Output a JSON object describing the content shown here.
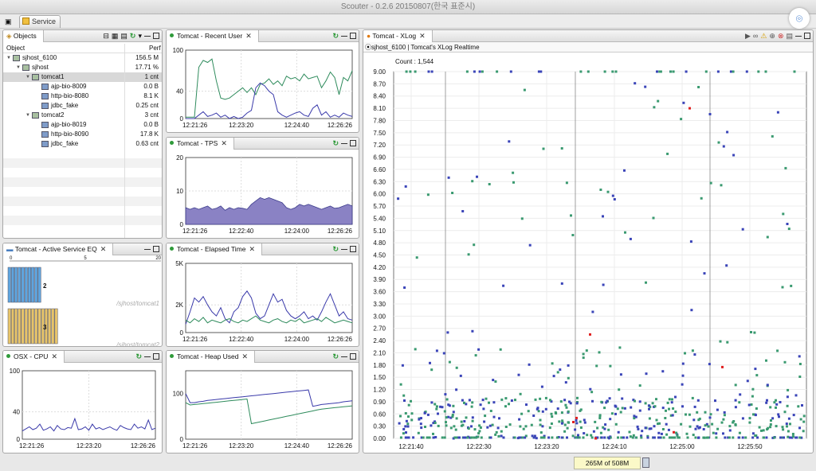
{
  "window_title": "Scouter - 0.2.6 20150807(한국 표준시)",
  "toolbar": {
    "service_tab": "Service"
  },
  "colors": {
    "green": "#2e8b5c",
    "blue": "#3a3aaa",
    "purple_fill": "#8a82c4",
    "accent_green": "#2f9a3a",
    "xlog_green": "#3a9a70",
    "xlog_blue": "#3a44b8",
    "xlog_red": "#e02020",
    "bar_blue": "#5fa5df",
    "bar_gold": "#e7c46a"
  },
  "icons": {
    "refresh": "refresh-icon",
    "minimize": "minimize-icon",
    "maximize": "maximize-icon",
    "close": "close-icon"
  },
  "objects": {
    "tab": "Objects",
    "col_object": "Object",
    "col_perf": "Perf",
    "rows": [
      {
        "name": "sjhost_6100",
        "perf": "156.5 M",
        "level": 0,
        "icon": "server-icon"
      },
      {
        "name": "sjhost",
        "perf": "17.71 %",
        "level": 1,
        "icon": "host-icon"
      },
      {
        "name": "tomcat1",
        "perf": "1 cnt",
        "level": 2,
        "icon": "tomcat-icon"
      },
      {
        "name": "ajp-bio-8009",
        "perf": "0.0 B",
        "level": 3,
        "icon": "connector-icon"
      },
      {
        "name": "http-bio-8080",
        "perf": "8.1 K",
        "level": 3,
        "icon": "connector-icon"
      },
      {
        "name": "jdbc_fake",
        "perf": "0.25 cnt",
        "level": 3,
        "icon": "jdbc-icon"
      },
      {
        "name": "tomcat2",
        "perf": "3 cnt",
        "level": 2,
        "icon": "tomcat-icon"
      },
      {
        "name": "ajp-bio-8019",
        "perf": "0.0 B",
        "level": 3,
        "icon": "connector-icon"
      },
      {
        "name": "http-bio-8090",
        "perf": "17.8 K",
        "level": 3,
        "icon": "connector-icon"
      },
      {
        "name": "jdbc_fake",
        "perf": "0.63 cnt",
        "level": 3,
        "icon": "jdbc-icon"
      }
    ]
  },
  "active_eq": {
    "tab": "Tomcat - Active Service EQ",
    "scale": [
      "0",
      "5",
      "20"
    ],
    "rows": [
      {
        "value": "2",
        "label": "/sjhost/tomcat1",
        "color": "#5fa5df"
      },
      {
        "value": "3",
        "label": "/sjhost/tomcat2",
        "color": "#e7c46a"
      }
    ]
  },
  "chart_data": [
    {
      "id": "recent_user",
      "tab": "Tomcat - Recent User",
      "type": "line",
      "ylim": [
        0,
        100
      ],
      "yticks": [
        "100",
        "40",
        "0"
      ],
      "xticks": [
        "12:21:26",
        "12:23:20",
        "12:24:40",
        "12:26:26"
      ],
      "series": [
        {
          "color": "#2e8b5c",
          "values": [
            2,
            2,
            2,
            75,
            85,
            82,
            87,
            55,
            30,
            28,
            30,
            35,
            40,
            45,
            38,
            45,
            35,
            50,
            52,
            58,
            50,
            55,
            48,
            62,
            58,
            60,
            55,
            65,
            58,
            60,
            62,
            45,
            55,
            68,
            60,
            35,
            60,
            55,
            70
          ]
        },
        {
          "color": "#3a3aaa",
          "values": [
            0,
            0,
            0,
            5,
            10,
            3,
            5,
            8,
            2,
            5,
            0,
            3,
            0,
            2,
            8,
            12,
            45,
            52,
            48,
            40,
            35,
            10,
            5,
            2,
            5,
            8,
            10,
            5,
            3,
            15,
            20,
            5,
            10,
            2,
            5,
            2,
            8,
            5,
            3
          ]
        }
      ]
    },
    {
      "id": "tps",
      "tab": "Tomcat - TPS",
      "type": "area",
      "ylim": [
        0,
        20
      ],
      "yticks": [
        "20",
        "10",
        "0"
      ],
      "xticks": [
        "12:21:26",
        "12:22:40",
        "12:24:00",
        "12:26:26"
      ],
      "series": [
        {
          "color": "#8a82c4",
          "values": [
            5,
            4.5,
            5,
            4.5,
            5,
            5.5,
            4.5,
            4.8,
            5.5,
            4.2,
            5,
            4.5,
            5,
            4.8,
            4.5,
            6,
            7,
            8,
            7.5,
            8,
            7.5,
            7,
            6.5,
            5,
            4.5,
            5,
            6,
            5.5,
            6,
            5.5,
            5,
            4.5,
            5,
            5.5,
            4.8,
            5,
            5.5,
            6,
            5.5
          ]
        }
      ]
    },
    {
      "id": "elapsed",
      "tab": "Tomcat - Elapsed Time",
      "type": "line",
      "ylim": [
        0,
        5000
      ],
      "yticks": [
        "5K",
        "2K",
        "0"
      ],
      "xticks": [
        "12:21:26",
        "12:22:40",
        "12:24:00",
        "12:26:26"
      ],
      "series": [
        {
          "color": "#3a3aaa",
          "values": [
            600,
            1500,
            2500,
            2200,
            2600,
            2000,
            1500,
            1200,
            1800,
            1000,
            700,
            1500,
            1800,
            2600,
            3000,
            2500,
            1400,
            1000,
            1200,
            2000,
            2800,
            2200,
            2400,
            1600,
            1200,
            1000,
            1200,
            1500,
            1000,
            1200,
            900,
            1500,
            2200,
            2800,
            2000,
            1200,
            1500,
            1000,
            900
          ]
        },
        {
          "color": "#2e8b5c",
          "values": [
            900,
            700,
            1000,
            800,
            1100,
            700,
            900,
            800,
            700,
            900,
            1000,
            800,
            700,
            900,
            800,
            1000,
            1200,
            900,
            800,
            700,
            900,
            1000,
            800,
            700,
            900,
            800,
            1000,
            700,
            800,
            900,
            1000,
            800,
            1100,
            900,
            700,
            800,
            900,
            800,
            700
          ]
        }
      ]
    },
    {
      "id": "cpu",
      "tab": "OSX - CPU",
      "type": "line",
      "ylim": [
        0,
        100
      ],
      "yticks": [
        "100",
        "40",
        "0"
      ],
      "xticks": [
        "12:21:26",
        "12:23:20",
        "12:26:26"
      ],
      "series": [
        {
          "color": "#3a3aaa",
          "values": [
            12,
            15,
            18,
            14,
            16,
            22,
            13,
            15,
            18,
            12,
            20,
            15,
            14,
            17,
            16,
            30,
            14,
            15,
            18,
            13,
            22,
            15,
            17,
            14,
            16,
            18,
            15,
            13,
            20,
            17,
            15,
            14,
            22,
            16,
            18,
            15,
            28,
            14,
            16
          ]
        }
      ]
    },
    {
      "id": "heap",
      "tab": "Tomcat - Heap Used",
      "type": "line",
      "ylim": [
        0,
        150
      ],
      "yticks": [
        "100",
        "0"
      ],
      "xticks": [
        "12:21:26",
        "12:23:20",
        "12:24:40",
        "12:26:26"
      ],
      "series": [
        {
          "color": "#3a3aaa",
          "values": [
            100,
            80,
            80,
            82,
            83,
            85,
            86,
            87,
            88,
            89,
            90,
            91,
            92,
            93,
            94,
            95,
            96,
            97,
            98,
            99,
            100,
            101,
            102,
            103,
            104,
            105,
            106,
            107,
            108,
            72,
            74,
            76,
            77,
            78,
            79,
            80,
            82,
            83,
            84
          ]
        },
        {
          "color": "#2e8b5c",
          "values": [
            80,
            75,
            76,
            77,
            78,
            79,
            80,
            81,
            82,
            83,
            84,
            85,
            86,
            87,
            88,
            34,
            36,
            38,
            40,
            42,
            44,
            46,
            48,
            50,
            52,
            54,
            56,
            58,
            60,
            62,
            64,
            66,
            67,
            68,
            69,
            70,
            71,
            72,
            73
          ]
        }
      ]
    }
  ],
  "xlog": {
    "tab": "Tomcat - XLog",
    "subtitle": "sjhost_6100 | Tomcat's XLog Realtime",
    "count_label": "Count : 1,544",
    "yticks": [
      "9.00",
      "8.70",
      "8.40",
      "8.10",
      "7.80",
      "7.50",
      "7.20",
      "6.90",
      "6.60",
      "6.30",
      "6.00",
      "5.70",
      "5.40",
      "5.10",
      "4.80",
      "4.50",
      "4.20",
      "3.90",
      "3.60",
      "3.30",
      "3.00",
      "2.70",
      "2.40",
      "2.10",
      "1.80",
      "1.50",
      "1.20",
      "0.90",
      "0.60",
      "0.30",
      "0.00"
    ],
    "xticks": [
      "12:21:40",
      "12:22:30",
      "12:23:20",
      "12:24:10",
      "12:25:00",
      "12:25:50"
    ]
  },
  "status": {
    "heap": "265M of 508M"
  }
}
